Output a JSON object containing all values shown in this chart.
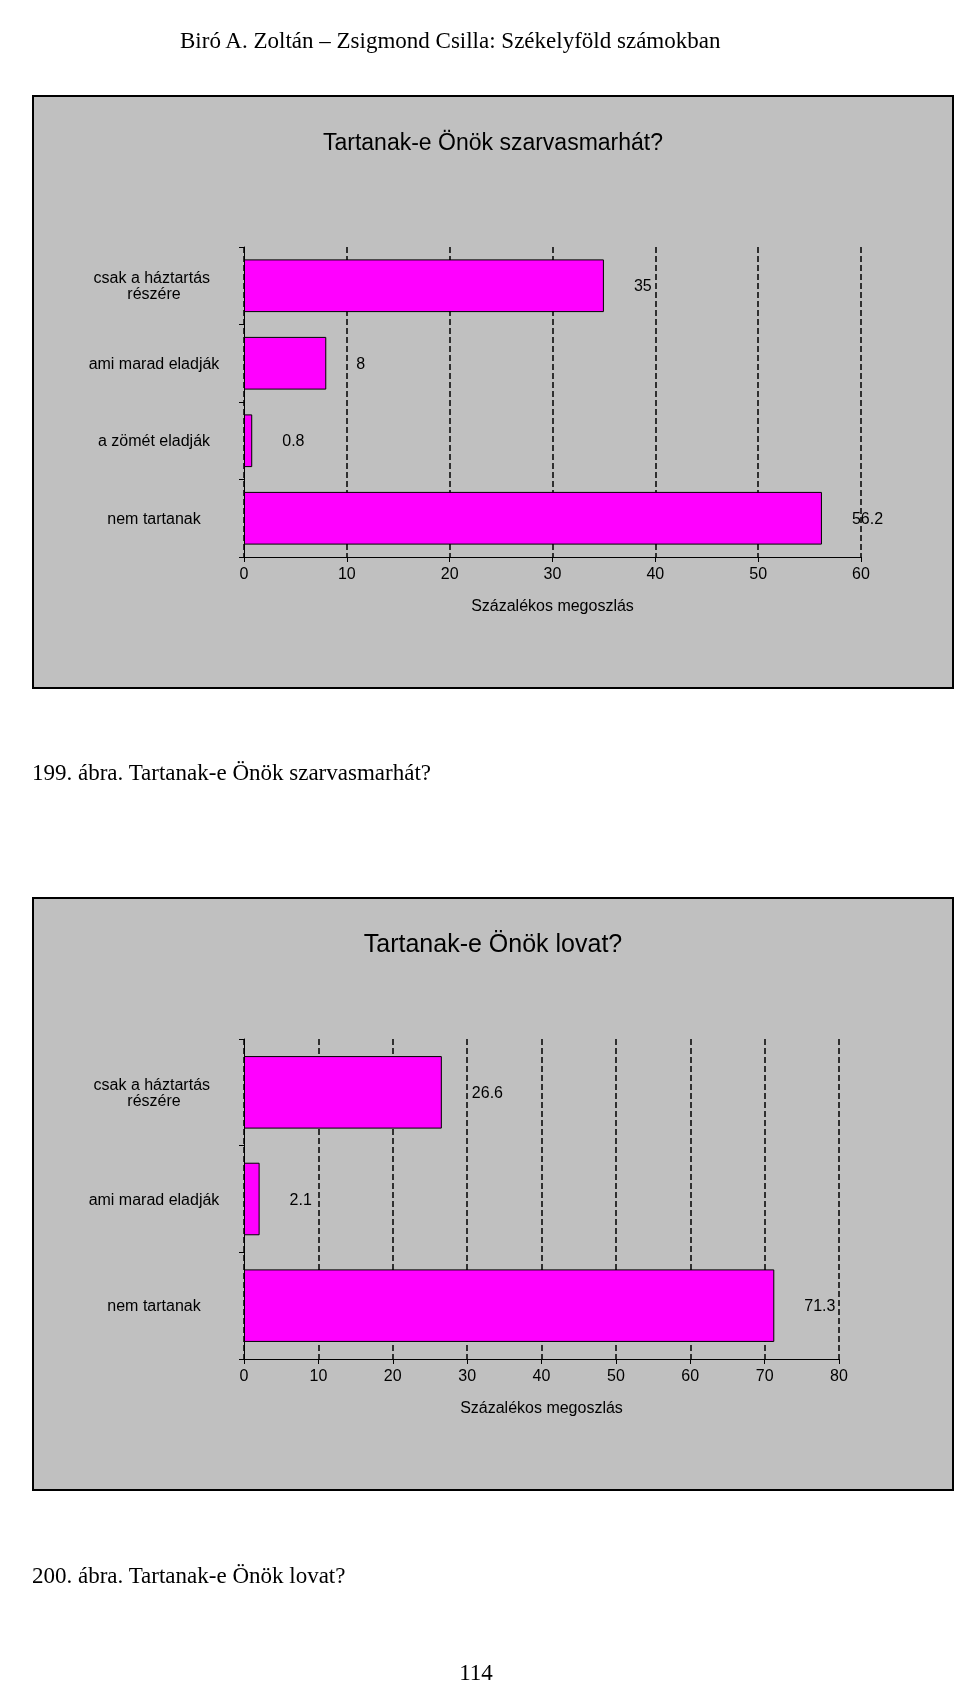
{
  "chart_data": [
    {
      "type": "bar",
      "orientation": "horizontal",
      "title": "Tartanak-e Önök szarvasmarhát?",
      "xlabel": "Százalékos megoszlás",
      "categories": [
        "csak a háztartás részére",
        "ami marad eladják",
        "a zömét eladják",
        "nem tartanak"
      ],
      "values": [
        35,
        8,
        0.8,
        56.2
      ],
      "color": "#ff00ff",
      "data_labels": true,
      "grid": "x",
      "xlim": [
        0,
        60
      ],
      "xticks": [
        0,
        10,
        20,
        30,
        40,
        50,
        60
      ],
      "annotations": [
        "Biró A. Zoltán – Zsigmond Csilla: Székelyföld számokban",
        "199. ábra. Tartanak-e Önök szarvasmarhát?"
      ]
    },
    {
      "type": "bar",
      "orientation": "horizontal",
      "title": "Tartanak-e Önök lovat?",
      "xlabel": "Százalékos megoszlás",
      "categories": [
        "csak a háztartás részére",
        "ami marad eladják",
        "nem tartanak"
      ],
      "values": [
        26.6,
        2.1,
        71.3
      ],
      "color": "#ff00ff",
      "data_labels": true,
      "grid": "x",
      "xlim": [
        0,
        80
      ],
      "xticks": [
        0,
        10,
        20,
        30,
        40,
        50,
        60,
        70,
        80
      ],
      "annotations": [
        "200. ábra. Tartanak-e Önök lovat?",
        "114"
      ]
    }
  ]
}
